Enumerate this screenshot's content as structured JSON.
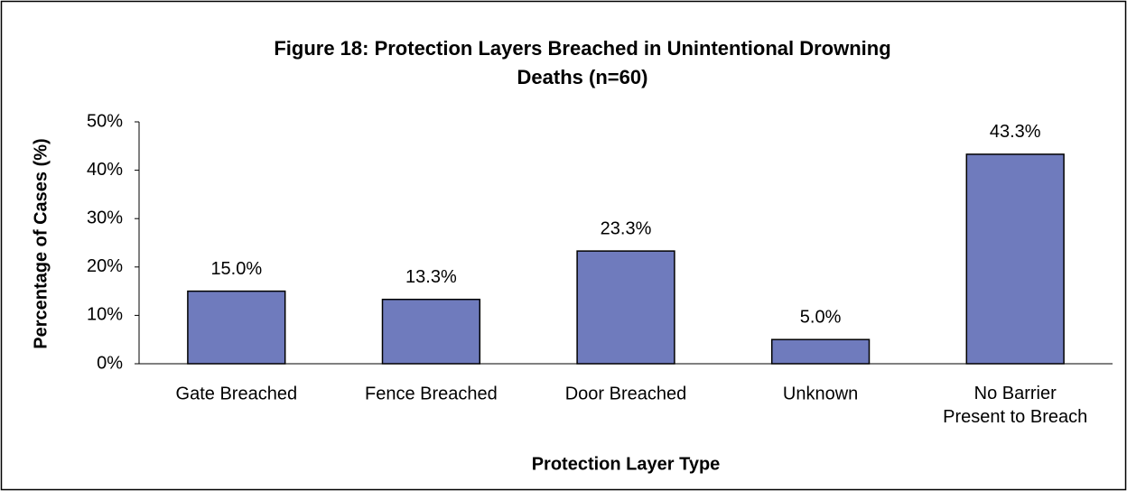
{
  "chart_data": {
    "type": "bar",
    "title": "Figure 18: Protection Layers Breached in Unintentional Drowning Deaths (n=60)",
    "title_lines": [
      "Figure 18: Protection Layers Breached in Unintentional Drowning",
      "Deaths (n=60)"
    ],
    "categories": [
      "Gate Breached",
      "Fence Breached",
      "Door Breached",
      "Unknown",
      "No Barrier Present to Breach"
    ],
    "values": [
      15.0,
      13.3,
      23.3,
      5.0,
      43.3
    ],
    "value_labels": [
      "15.0%",
      "13.3%",
      "23.3%",
      "5.0%",
      "43.3%"
    ],
    "color": "#6f7bbd",
    "xlabel": "Protection Layer Type",
    "ylabel": "Percentage of Cases (%)",
    "ylim": [
      0,
      50
    ],
    "yticks": [
      {
        "value": 0,
        "label": "0%"
      },
      {
        "value": 10,
        "label": "10%"
      },
      {
        "value": 20,
        "label": "20%"
      },
      {
        "value": 30,
        "label": "30%"
      },
      {
        "value": 40,
        "label": "40%"
      },
      {
        "value": 50,
        "label": "50%"
      }
    ],
    "grid": false
  }
}
